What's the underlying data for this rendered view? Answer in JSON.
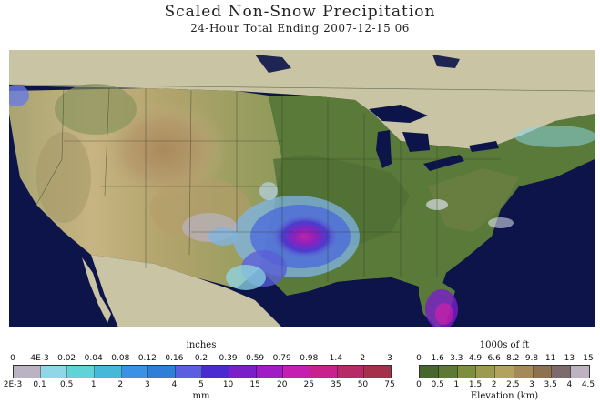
{
  "title": "Scaled Non-Snow Precipitation",
  "subtitle": "24-Hour Total Ending 2007-12-15 06",
  "precip_legend": {
    "top_unit": "inches",
    "bottom_unit": "mm",
    "inch_labels": [
      "0",
      "4E-3",
      "0.02",
      "0.04",
      "0.08",
      "0.12",
      "0.16",
      "0.2",
      "0.39",
      "0.59",
      "0.79",
      "0.98",
      "1.4",
      "2",
      "3"
    ],
    "mm_labels": [
      "2E-3",
      "0.1",
      "0.5",
      "1",
      "2",
      "3",
      "4",
      "5",
      "10",
      "15",
      "20",
      "25",
      "35",
      "50",
      "75"
    ],
    "colors": [
      "#b9b3c3",
      "#8fd6e6",
      "#5fd3d6",
      "#46b8d8",
      "#3b91e3",
      "#2f7ed8",
      "#5a5ee0",
      "#4a2bd0",
      "#7b1fc8",
      "#a01cc4",
      "#c41fb0",
      "#c8218c",
      "#b62a66",
      "#a5304a"
    ]
  },
  "elevation_legend": {
    "top_unit": "1000s of ft",
    "bottom_unit": "Elevation (km)",
    "ft_labels": [
      "0",
      "1.6",
      "3.3",
      "4.9",
      "6.6",
      "8.2",
      "9.8",
      "11",
      "13",
      "15"
    ],
    "km_labels": [
      "0",
      "0.5",
      "1",
      "1.5",
      "2",
      "2.5",
      "3",
      "3.5",
      "4",
      "4.5"
    ],
    "colors": [
      "#45662c",
      "#5d7a34",
      "#7d8f3f",
      "#9c9a4e",
      "#b3a160",
      "#a58a58",
      "#8d7250",
      "#7c6a6c",
      "#bcb2c0"
    ]
  }
}
